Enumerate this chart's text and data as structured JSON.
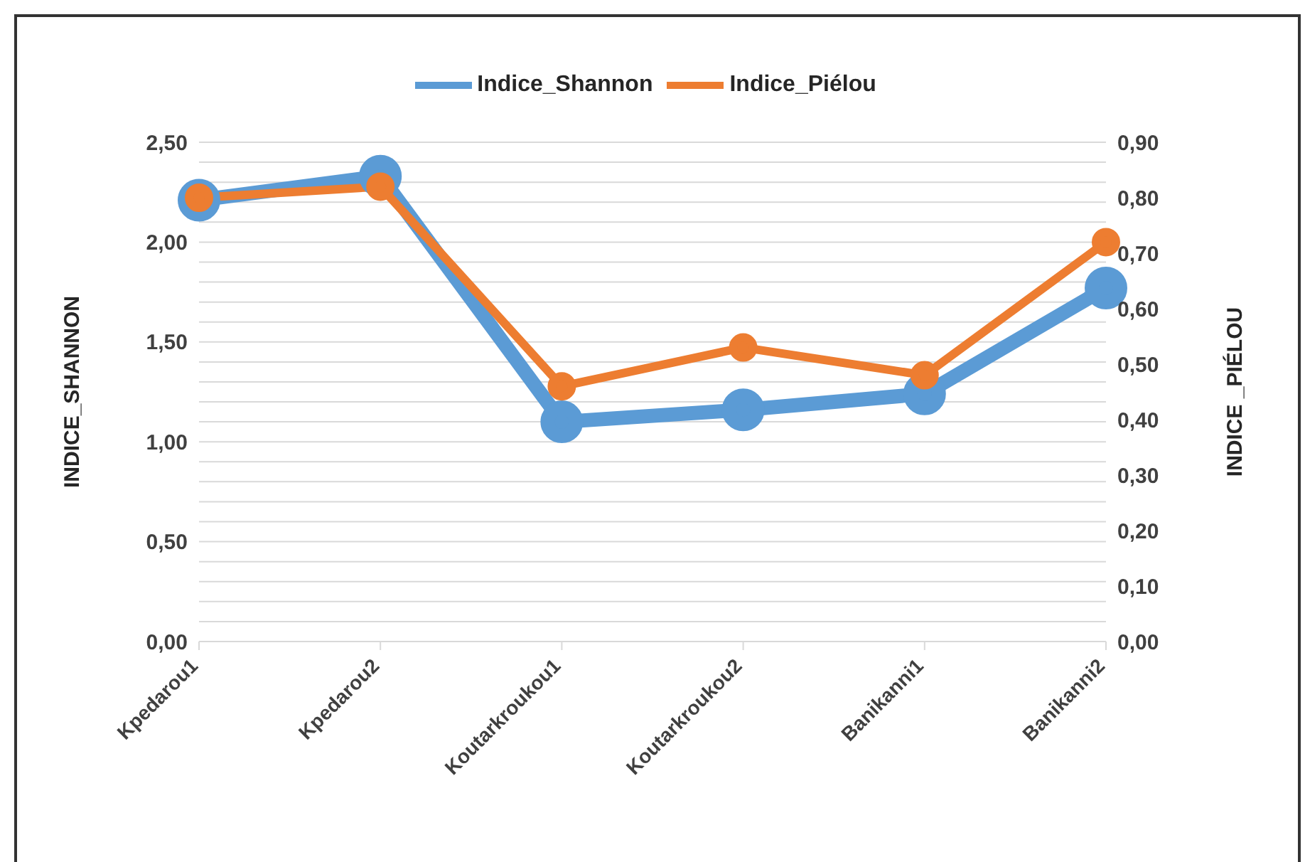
{
  "chart_data": {
    "type": "line",
    "categories": [
      "Kpedarou1",
      "Kpedarou2",
      "Koutarkroukou1",
      "Koutarkroukou2",
      "Banikanni1",
      "Banikanni2"
    ],
    "series": [
      {
        "name": "Indice_Shannon",
        "color": "#5b9bd5",
        "values": [
          2.21,
          2.33,
          1.1,
          1.16,
          1.24,
          1.77
        ]
      },
      {
        "name": "Indice_Piélou",
        "color": "#ed7d31",
        "axis": "y2",
        "values": [
          0.8,
          0.82,
          0.46,
          0.53,
          0.48,
          0.72
        ]
      }
    ],
    "ylabel": "INDICE_SHANNON",
    "y2label": "INDICE _PIÉLOU",
    "ylim": [
      0,
      2.5
    ],
    "yticks": [
      {
        "value": 0,
        "label": "0,00"
      },
      {
        "value": 0.1,
        "label": null
      },
      {
        "value": 0.2,
        "label": null
      },
      {
        "value": 0.3,
        "label": null
      },
      {
        "value": 0.4,
        "label": null
      },
      {
        "value": 0.5,
        "label": "0,50"
      },
      {
        "value": 0.6,
        "label": null
      },
      {
        "value": 0.7,
        "label": null
      },
      {
        "value": 0.8,
        "label": null
      },
      {
        "value": 0.9,
        "label": null
      },
      {
        "value": 1,
        "label": "1,00"
      },
      {
        "value": 1.1,
        "label": null
      },
      {
        "value": 1.2,
        "label": null
      },
      {
        "value": 1.3,
        "label": null
      },
      {
        "value": 1.4,
        "label": null
      },
      {
        "value": 1.5,
        "label": "1,50"
      },
      {
        "value": 1.6,
        "label": null
      },
      {
        "value": 1.7,
        "label": null
      },
      {
        "value": 1.8,
        "label": null
      },
      {
        "value": 1.9,
        "label": null
      },
      {
        "value": 2,
        "label": "2,00"
      },
      {
        "value": 2.1,
        "label": null
      },
      {
        "value": 2.2,
        "label": null
      },
      {
        "value": 2.3,
        "label": null
      },
      {
        "value": 2.4,
        "label": null
      },
      {
        "value": 2.5,
        "label": "2,50"
      }
    ],
    "y2lim": [
      0,
      0.9
    ],
    "y2ticks": [
      {
        "value": 0,
        "label": "0,00"
      },
      {
        "value": 0.1,
        "label": "0,10"
      },
      {
        "value": 0.2,
        "label": "0,20"
      },
      {
        "value": 0.3,
        "label": "0,30"
      },
      {
        "value": 0.4,
        "label": "0,40"
      },
      {
        "value": 0.5,
        "label": "0,50"
      },
      {
        "value": 0.6,
        "label": "0,60"
      },
      {
        "value": 0.7,
        "label": "0,70"
      },
      {
        "value": 0.8,
        "label": "0,80"
      },
      {
        "value": 0.9,
        "label": "0,90"
      }
    ],
    "grid": "y",
    "legend": "top",
    "marker": "circle",
    "line_style": "solid"
  }
}
